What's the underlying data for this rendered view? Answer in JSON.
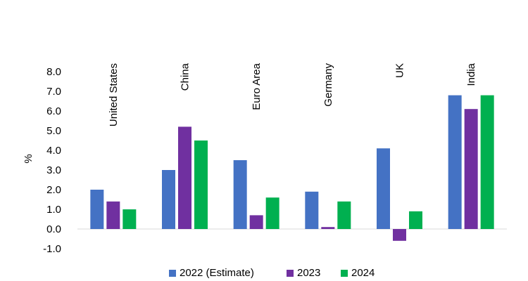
{
  "chart_data": {
    "type": "bar",
    "categories": [
      "United States",
      "China",
      "Euro Area",
      "Germany",
      "UK",
      "India"
    ],
    "series": [
      {
        "name": "2022 (Estimate)",
        "color": "#4472C4",
        "values": [
          2.0,
          3.0,
          3.5,
          1.9,
          4.1,
          6.8
        ]
      },
      {
        "name": "2023",
        "color": "#7030A0",
        "values": [
          1.4,
          5.2,
          0.7,
          0.1,
          -0.6,
          6.1
        ]
      },
      {
        "name": "2024",
        "color": "#00B050",
        "values": [
          1.0,
          4.5,
          1.6,
          1.4,
          0.9,
          6.8
        ]
      }
    ],
    "ylabel": "%",
    "ylim": [
      -1.0,
      8.0
    ],
    "yticks": [
      "-1.0",
      "0.0",
      "1.0",
      "2.0",
      "3.0",
      "4.0",
      "5.0",
      "6.0",
      "7.0",
      "8.0"
    ],
    "grid": false,
    "legend": "bottom"
  }
}
